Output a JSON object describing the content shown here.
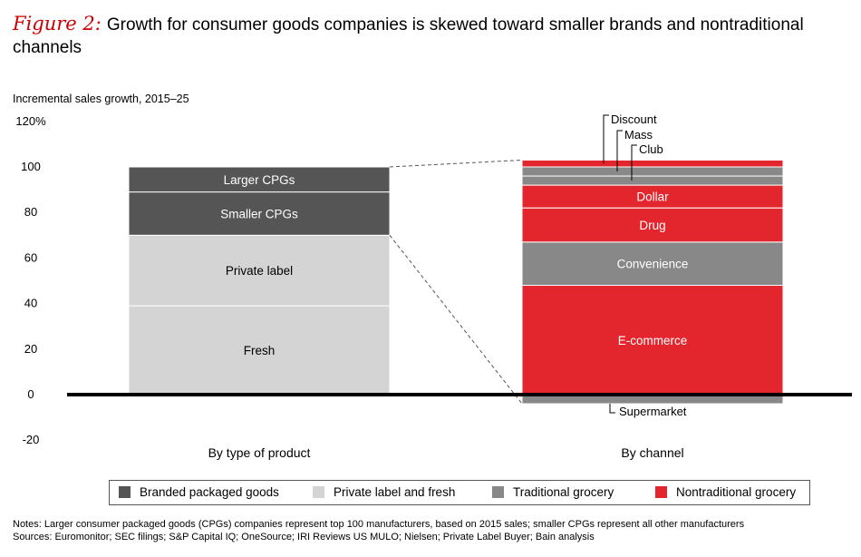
{
  "title": {
    "figure_label": "Figure 2:",
    "text": "Growth for consumer goods companies is skewed toward smaller brands and nontraditional channels"
  },
  "chart_data": {
    "type": "bar",
    "subtype": "stacked",
    "ylabel": "Incremental sales growth, 2015–25",
    "ylim": [
      -20,
      120
    ],
    "yticks": [
      "120%",
      "100",
      "80",
      "60",
      "40",
      "20",
      "0",
      "-20"
    ],
    "ytick_values": [
      120,
      100,
      80,
      60,
      40,
      20,
      0,
      -20
    ],
    "categories": [
      "By type of product",
      "By channel"
    ],
    "bars": [
      {
        "category": "By type of product",
        "segments": [
          {
            "label": "Fresh",
            "value": 39,
            "group": "Private label and fresh"
          },
          {
            "label": "Private label",
            "value": 31,
            "group": "Private label and fresh"
          },
          {
            "label": "Smaller CPGs",
            "value": 19,
            "group": "Branded packaged goods"
          },
          {
            "label": "Larger CPGs",
            "value": 11,
            "group": "Branded packaged goods"
          }
        ]
      },
      {
        "category": "By channel",
        "segments": [
          {
            "label": "Supermarket",
            "value": -4,
            "group": "Traditional grocery"
          },
          {
            "label": "E-commerce",
            "value": 48,
            "group": "Nontraditional grocery"
          },
          {
            "label": "Convenience",
            "value": 19,
            "group": "Traditional grocery"
          },
          {
            "label": "Drug",
            "value": 15,
            "group": "Nontraditional grocery"
          },
          {
            "label": "Dollar",
            "value": 10,
            "group": "Nontraditional grocery"
          },
          {
            "label": "Club",
            "value": 4,
            "group": "Traditional grocery"
          },
          {
            "label": "Mass",
            "value": 4,
            "group": "Traditional grocery"
          },
          {
            "label": "Discount",
            "value": 3,
            "group": "Nontraditional grocery"
          }
        ]
      }
    ],
    "legend": {
      "placement": "bottom",
      "entries": [
        {
          "label": "Branded packaged goods",
          "color": "#555555"
        },
        {
          "label": "Private label and fresh",
          "color": "#d4d4d4"
        },
        {
          "label": "Traditional grocery",
          "color": "#888888"
        },
        {
          "label": "Nontraditional grocery",
          "color": "#e3262d"
        }
      ]
    }
  },
  "notes": {
    "line1": "Notes: Larger consumer packaged goods (CPGs) companies represent top 100 manufacturers, based on 2015 sales; smaller CPGs represent all other manufacturers",
    "line2": "Sources: Euromonitor; SEC filings; S&P Capital IQ; OneSource; IRI Reviews US MULO; Nielsen; Private Label Buyer; Bain analysis"
  }
}
